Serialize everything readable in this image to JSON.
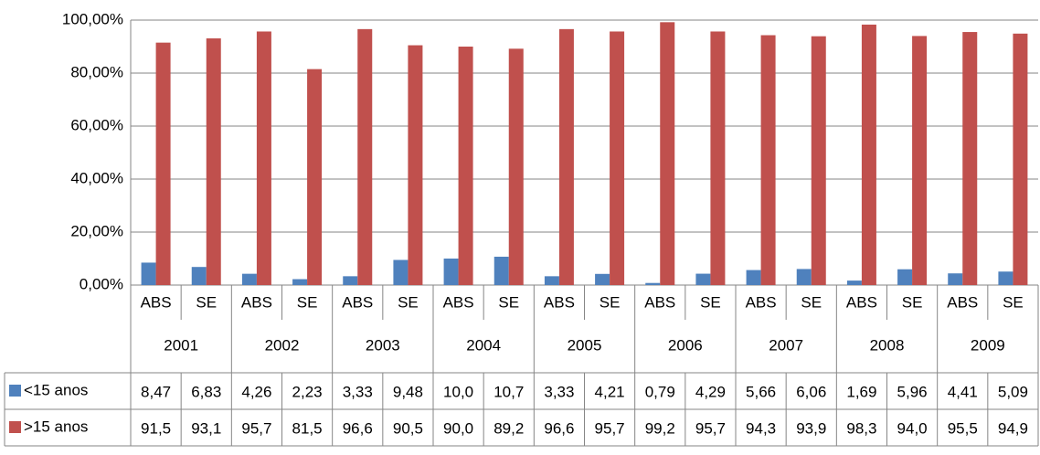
{
  "chart_data": {
    "type": "bar",
    "categories": [
      "ABS",
      "SE",
      "ABS",
      "SE",
      "ABS",
      "SE",
      "ABS",
      "SE",
      "ABS",
      "SE",
      "ABS",
      "SE",
      "ABS",
      "SE",
      "ABS",
      "SE",
      "ABS",
      "SE"
    ],
    "category_groups": [
      "2001",
      "2002",
      "2003",
      "2004",
      "2005",
      "2006",
      "2007",
      "2008",
      "2009"
    ],
    "series": [
      {
        "name": "<15 anos",
        "color": "#4f81bd",
        "values": [
          8.47,
          6.83,
          4.26,
          2.23,
          3.33,
          9.48,
          10.0,
          10.7,
          3.33,
          4.21,
          0.79,
          4.29,
          5.66,
          6.06,
          1.69,
          5.96,
          4.41,
          5.09
        ],
        "value_labels": [
          "8,47",
          "6,83",
          "4,26",
          "2,23",
          "3,33",
          "9,48",
          "10,0",
          "10,7",
          "3,33",
          "4,21",
          "0,79",
          "4,29",
          "5,66",
          "6,06",
          "1,69",
          "5,96",
          "4,41",
          "5,09"
        ]
      },
      {
        "name": ">15 anos",
        "color": "#c0504d",
        "values": [
          91.5,
          93.1,
          95.7,
          81.5,
          96.6,
          90.5,
          90.0,
          89.2,
          96.6,
          95.7,
          99.2,
          95.7,
          94.3,
          93.9,
          98.3,
          94.0,
          95.5,
          94.9
        ],
        "value_labels": [
          "91,5",
          "93,1",
          "95,7",
          "81,5",
          "96,6",
          "90,5",
          "90,0",
          "89,2",
          "96,6",
          "95,7",
          "99,2",
          "95,7",
          "94,3",
          "93,9",
          "98,3",
          "94,0",
          "95,5",
          "94,9"
        ]
      }
    ],
    "ylim": [
      0,
      100
    ],
    "yticks": [
      {
        "value": 0,
        "label": "0,00%"
      },
      {
        "value": 20,
        "label": "20,00%"
      },
      {
        "value": 40,
        "label": "40,00%"
      },
      {
        "value": 60,
        "label": "60,00%"
      },
      {
        "value": 80,
        "label": "80,00%"
      },
      {
        "value": 100,
        "label": "100,00%"
      }
    ],
    "grid": true
  }
}
